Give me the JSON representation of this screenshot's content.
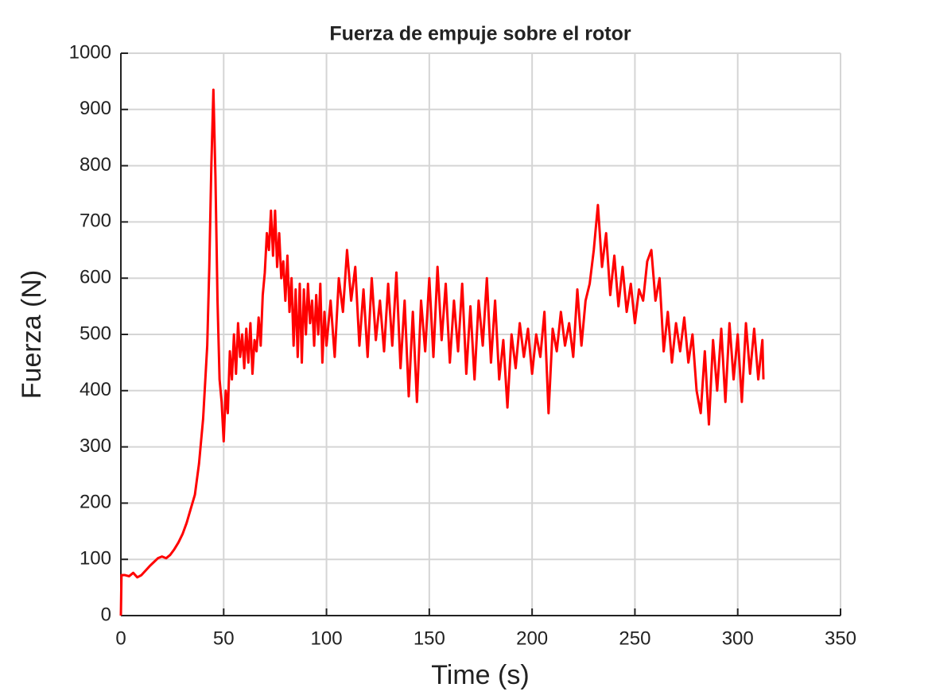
{
  "chart_data": {
    "type": "line",
    "title": "Fuerza de empuje sobre el rotor",
    "x_label": "Time (s)",
    "y_label": "Fuerza (N)",
    "x": [
      0,
      0.3,
      2,
      4,
      6,
      8,
      10,
      12,
      14,
      16,
      18,
      20,
      22,
      24,
      26,
      28,
      30,
      32,
      34,
      36,
      38,
      40,
      42,
      43,
      44,
      45,
      46,
      47,
      48,
      49,
      50,
      51,
      52,
      53,
      54,
      55,
      56,
      57,
      58,
      59,
      60,
      61,
      62,
      63,
      64,
      65,
      66,
      67,
      68,
      69,
      70,
      71,
      72,
      73,
      74,
      75,
      76,
      77,
      78,
      79,
      80,
      81,
      82,
      83,
      84,
      85,
      86,
      87,
      88,
      89,
      90,
      91,
      92,
      93,
      94,
      95,
      96,
      97,
      98,
      99,
      100,
      102,
      104,
      106,
      108,
      110,
      112,
      114,
      116,
      118,
      120,
      122,
      124,
      126,
      128,
      130,
      132,
      134,
      136,
      138,
      140,
      142,
      144,
      146,
      148,
      150,
      152,
      154,
      156,
      158,
      160,
      162,
      164,
      166,
      168,
      170,
      172,
      174,
      176,
      178,
      180,
      182,
      184,
      186,
      188,
      190,
      192,
      194,
      196,
      198,
      200,
      202,
      204,
      206,
      208,
      210,
      212,
      214,
      216,
      218,
      220,
      222,
      224,
      226,
      228,
      230,
      232,
      234,
      236,
      238,
      240,
      242,
      244,
      246,
      248,
      250,
      252,
      254,
      256,
      258,
      260,
      262,
      264,
      266,
      268,
      270,
      272,
      274,
      276,
      278,
      280,
      282,
      284,
      286,
      288,
      290,
      292,
      294,
      296,
      298,
      300,
      302,
      304,
      306,
      308,
      310,
      312,
      312.5
    ],
    "series": [
      {
        "name": "Fuerza",
        "color": "#ff0000",
        "values": [
          0,
          72,
          72,
          70,
          76,
          68,
          72,
          80,
          88,
          95,
          102,
          105,
          102,
          108,
          118,
          130,
          145,
          165,
          190,
          215,
          270,
          350,
          480,
          620,
          800,
          935,
          780,
          560,
          420,
          380,
          310,
          400,
          360,
          470,
          420,
          500,
          430,
          520,
          460,
          500,
          440,
          510,
          450,
          520,
          430,
          490,
          470,
          530,
          480,
          570,
          610,
          680,
          650,
          720,
          640,
          720,
          620,
          680,
          600,
          630,
          560,
          640,
          540,
          600,
          480,
          580,
          460,
          590,
          450,
          580,
          500,
          590,
          520,
          560,
          480,
          570,
          500,
          590,
          450,
          540,
          480,
          560,
          460,
          600,
          540,
          650,
          560,
          620,
          480,
          580,
          460,
          600,
          490,
          560,
          470,
          590,
          480,
          610,
          440,
          560,
          390,
          540,
          380,
          560,
          470,
          600,
          460,
          620,
          490,
          590,
          450,
          560,
          470,
          590,
          430,
          550,
          420,
          560,
          480,
          600,
          450,
          560,
          420,
          490,
          370,
          500,
          440,
          520,
          460,
          510,
          430,
          500,
          460,
          540,
          360,
          510,
          470,
          540,
          480,
          520,
          460,
          580,
          480,
          560,
          590,
          650,
          730,
          620,
          680,
          570,
          640,
          550,
          620,
          540,
          590,
          520,
          580,
          560,
          630,
          650,
          560,
          600,
          470,
          540,
          450,
          520,
          470,
          530,
          450,
          500,
          400,
          360,
          470,
          340,
          490,
          400,
          510,
          380,
          520,
          420,
          500,
          380,
          520,
          430,
          510,
          420,
          490,
          420
        ]
      }
    ],
    "xlim": [
      0,
      350
    ],
    "ylim": [
      0,
      1000
    ],
    "xticks": [
      0,
      50,
      100,
      150,
      200,
      250,
      300,
      350
    ],
    "yticks": [
      0,
      100,
      200,
      300,
      400,
      500,
      600,
      700,
      800,
      900,
      1000
    ],
    "grid": true
  }
}
